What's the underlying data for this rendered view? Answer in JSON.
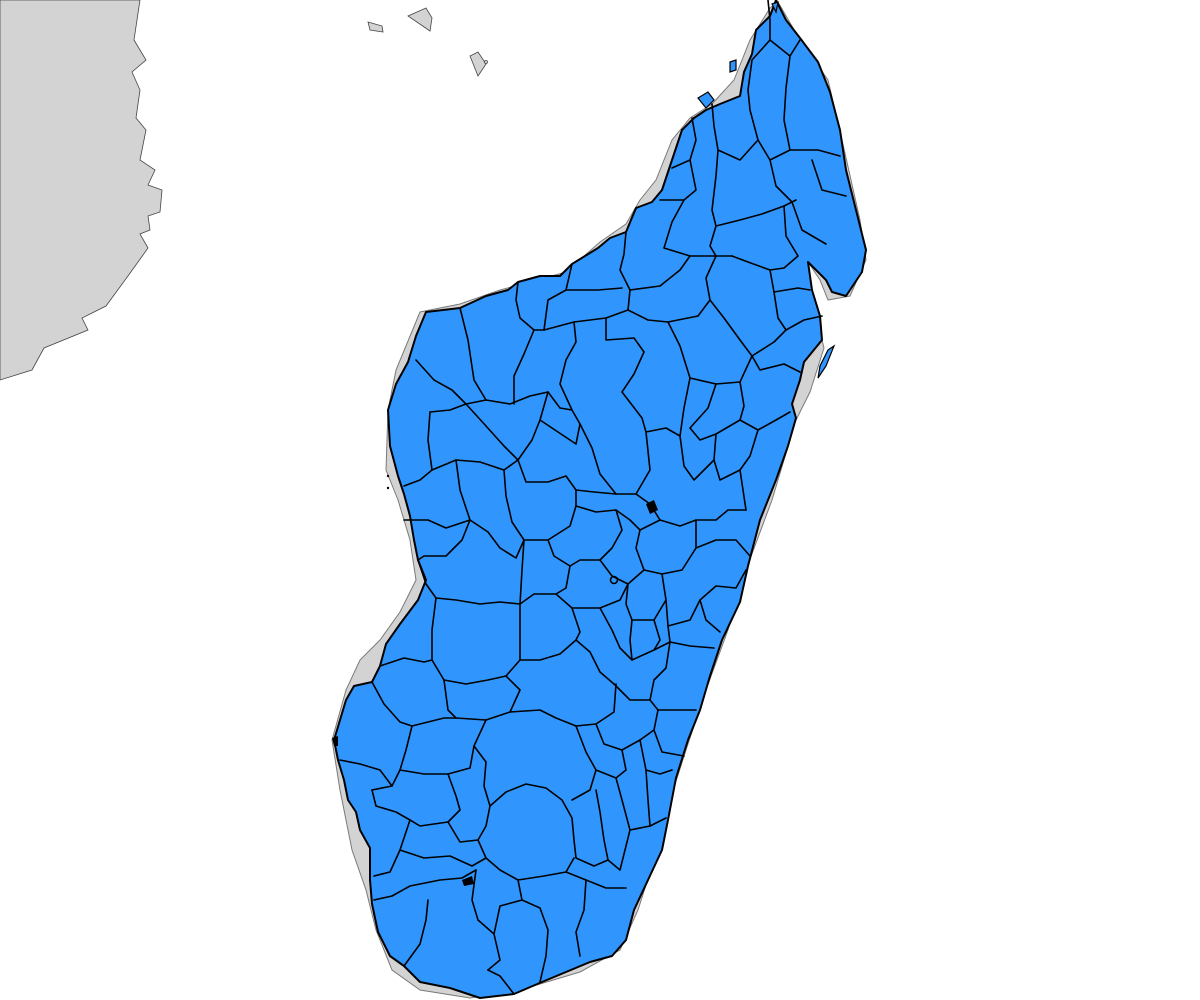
{
  "map": {
    "type": "choropleth",
    "region_fill": "#3096fe",
    "border_color": "#000000",
    "neighbor_land_color": "#d3d3d3",
    "background_color": "#ffffff",
    "labels": [],
    "legend": null
  }
}
